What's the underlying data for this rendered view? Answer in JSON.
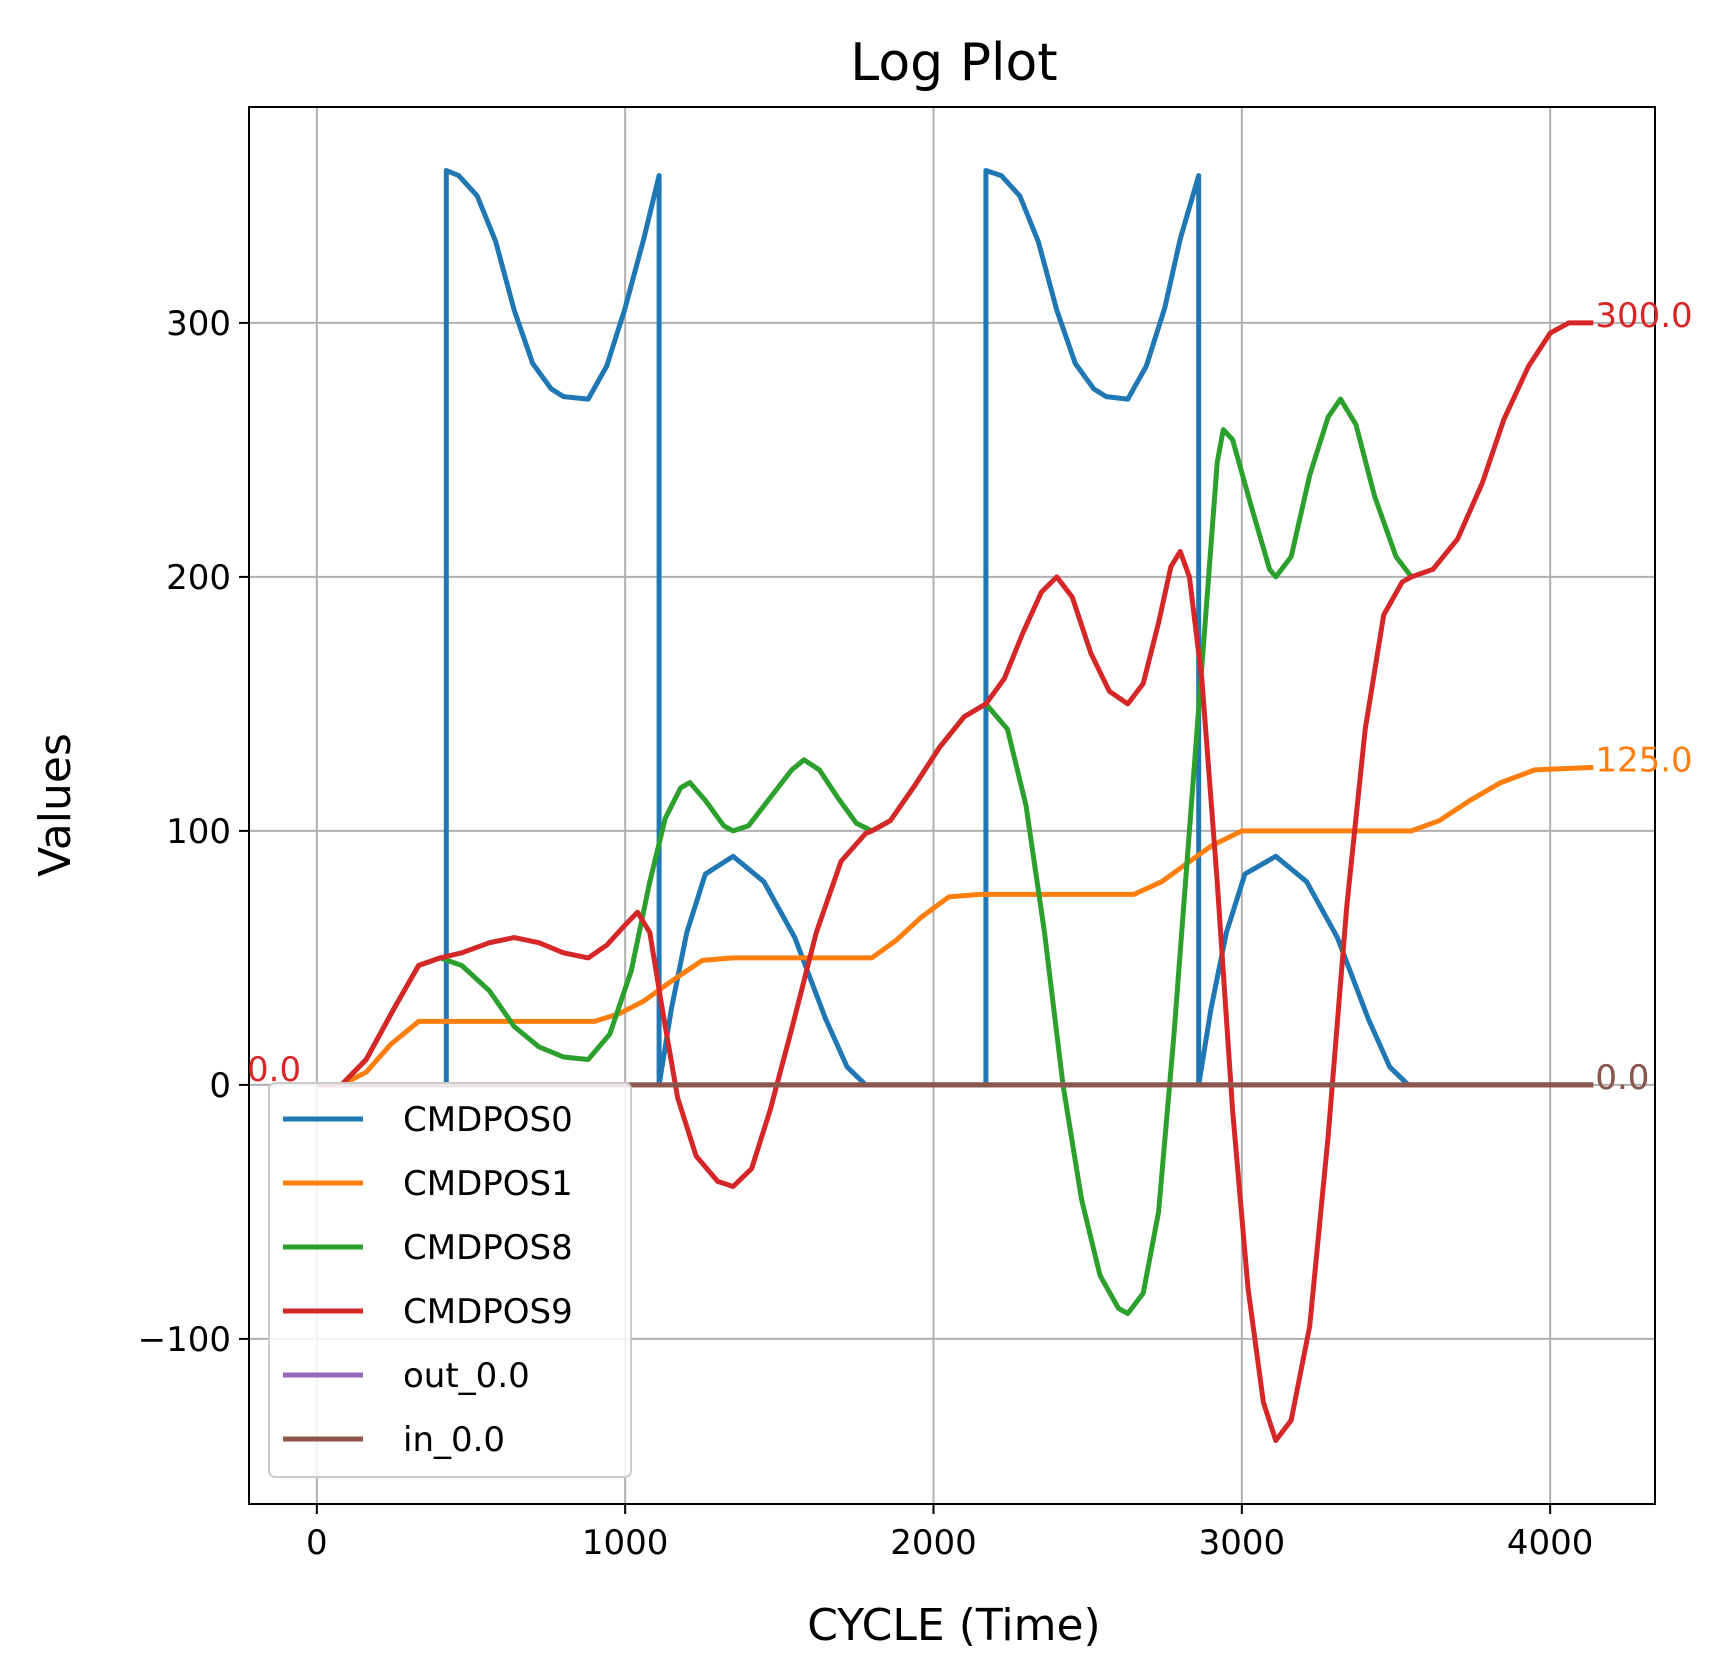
{
  "chart_data": {
    "type": "line",
    "title": "Log Plot",
    "xlabel": "CYCLE (Time)",
    "ylabel": "Values",
    "xlim": [
      -220,
      4340
    ],
    "ylim": [
      -165,
      385
    ],
    "xticks": [
      0,
      1000,
      2000,
      3000,
      4000
    ],
    "yticks": [
      -100,
      0,
      100,
      200,
      300
    ],
    "xtick_labels": [
      "0",
      "1000",
      "2000",
      "3000",
      "4000"
    ],
    "ytick_labels": [
      "−100",
      "0",
      "100",
      "200",
      "300"
    ],
    "grid": true,
    "legend_position": "lower-left",
    "series": [
      {
        "name": "CMDPOS0",
        "color": "#1f77b4",
        "points": [
          [
            0,
            0
          ],
          [
            420,
            0
          ],
          [
            420,
            360
          ],
          [
            460,
            358
          ],
          [
            520,
            350
          ],
          [
            580,
            332
          ],
          [
            640,
            305
          ],
          [
            700,
            284
          ],
          [
            760,
            274
          ],
          [
            800,
            271
          ],
          [
            880,
            270
          ],
          [
            940,
            283
          ],
          [
            1000,
            306
          ],
          [
            1060,
            333
          ],
          [
            1110,
            358
          ],
          [
            1110,
            0
          ],
          [
            1150,
            30
          ],
          [
            1200,
            60
          ],
          [
            1260,
            83
          ],
          [
            1350,
            90
          ],
          [
            1450,
            80
          ],
          [
            1550,
            58
          ],
          [
            1650,
            26
          ],
          [
            1720,
            7
          ],
          [
            1780,
            0
          ],
          [
            2170,
            0
          ],
          [
            2170,
            360
          ],
          [
            2220,
            358
          ],
          [
            2280,
            350
          ],
          [
            2340,
            332
          ],
          [
            2400,
            305
          ],
          [
            2460,
            284
          ],
          [
            2520,
            274
          ],
          [
            2560,
            271
          ],
          [
            2630,
            270
          ],
          [
            2690,
            283
          ],
          [
            2750,
            306
          ],
          [
            2800,
            333
          ],
          [
            2860,
            358
          ],
          [
            2860,
            0
          ],
          [
            2900,
            30
          ],
          [
            2950,
            60
          ],
          [
            3010,
            83
          ],
          [
            3110,
            90
          ],
          [
            3210,
            80
          ],
          [
            3310,
            58
          ],
          [
            3410,
            26
          ],
          [
            3480,
            7
          ],
          [
            3540,
            0
          ],
          [
            4140,
            0
          ]
        ],
        "end_label": "0.0"
      },
      {
        "name": "CMDPOS1",
        "color": "#ff7f0e",
        "points": [
          [
            0,
            0
          ],
          [
            80,
            0
          ],
          [
            160,
            5
          ],
          [
            240,
            16
          ],
          [
            330,
            25
          ],
          [
            900,
            25
          ],
          [
            980,
            28
          ],
          [
            1060,
            33
          ],
          [
            1140,
            40
          ],
          [
            1250,
            49
          ],
          [
            1350,
            50
          ],
          [
            1800,
            50
          ],
          [
            1880,
            57
          ],
          [
            1960,
            66
          ],
          [
            2050,
            74
          ],
          [
            2150,
            75
          ],
          [
            2650,
            75
          ],
          [
            2740,
            80
          ],
          [
            2820,
            87
          ],
          [
            2900,
            94
          ],
          [
            3000,
            100
          ],
          [
            3550,
            100
          ],
          [
            3640,
            104
          ],
          [
            3740,
            112
          ],
          [
            3840,
            119
          ],
          [
            3950,
            124
          ],
          [
            4140,
            125
          ]
        ],
        "end_label": "125.0"
      },
      {
        "name": "CMDPOS8",
        "color": "#2ca02c",
        "points": [
          [
            0,
            0
          ],
          [
            80,
            0
          ],
          [
            160,
            10
          ],
          [
            250,
            30
          ],
          [
            330,
            47
          ],
          [
            400,
            50
          ],
          [
            470,
            47
          ],
          [
            560,
            37
          ],
          [
            640,
            23
          ],
          [
            720,
            15
          ],
          [
            800,
            11
          ],
          [
            880,
            10
          ],
          [
            950,
            20
          ],
          [
            1020,
            45
          ],
          [
            1080,
            80
          ],
          [
            1130,
            105
          ],
          [
            1180,
            117
          ],
          [
            1210,
            119
          ],
          [
            1260,
            112
          ],
          [
            1320,
            102
          ],
          [
            1350,
            100
          ],
          [
            1400,
            102
          ],
          [
            1470,
            113
          ],
          [
            1540,
            124
          ],
          [
            1580,
            128
          ],
          [
            1630,
            124
          ],
          [
            1690,
            113
          ],
          [
            1750,
            103
          ],
          [
            1800,
            100
          ],
          [
            1860,
            104
          ],
          [
            1940,
            118
          ],
          [
            2020,
            133
          ],
          [
            2100,
            145
          ],
          [
            2170,
            150
          ],
          [
            2240,
            140
          ],
          [
            2300,
            110
          ],
          [
            2360,
            60
          ],
          [
            2420,
            0
          ],
          [
            2480,
            -45
          ],
          [
            2540,
            -75
          ],
          [
            2600,
            -88
          ],
          [
            2630,
            -90
          ],
          [
            2680,
            -82
          ],
          [
            2730,
            -50
          ],
          [
            2780,
            20
          ],
          [
            2830,
            100
          ],
          [
            2880,
            180
          ],
          [
            2920,
            245
          ],
          [
            2940,
            258
          ],
          [
            2970,
            254
          ],
          [
            3030,
            228
          ],
          [
            3090,
            203
          ],
          [
            3110,
            200
          ],
          [
            3160,
            208
          ],
          [
            3220,
            240
          ],
          [
            3280,
            263
          ],
          [
            3320,
            270
          ],
          [
            3370,
            260
          ],
          [
            3430,
            232
          ],
          [
            3500,
            208
          ],
          [
            3550,
            200
          ]
        ],
        "end_label": ""
      },
      {
        "name": "CMDPOS9",
        "color": "#d62728",
        "points": [
          [
            0,
            0
          ],
          [
            80,
            0
          ],
          [
            160,
            10
          ],
          [
            250,
            30
          ],
          [
            330,
            47
          ],
          [
            400,
            50
          ],
          [
            470,
            52
          ],
          [
            560,
            56
          ],
          [
            640,
            58
          ],
          [
            720,
            56
          ],
          [
            800,
            52
          ],
          [
            880,
            50
          ],
          [
            940,
            55
          ],
          [
            1000,
            63
          ],
          [
            1040,
            68
          ],
          [
            1080,
            60
          ],
          [
            1120,
            30
          ],
          [
            1170,
            -5
          ],
          [
            1230,
            -28
          ],
          [
            1300,
            -38
          ],
          [
            1350,
            -40
          ],
          [
            1410,
            -33
          ],
          [
            1470,
            -10
          ],
          [
            1540,
            22
          ],
          [
            1620,
            60
          ],
          [
            1700,
            88
          ],
          [
            1780,
            99
          ],
          [
            1800,
            100
          ],
          [
            1860,
            104
          ],
          [
            1940,
            118
          ],
          [
            2020,
            133
          ],
          [
            2100,
            145
          ],
          [
            2170,
            150
          ],
          [
            2230,
            160
          ],
          [
            2290,
            178
          ],
          [
            2350,
            194
          ],
          [
            2400,
            200
          ],
          [
            2450,
            192
          ],
          [
            2510,
            170
          ],
          [
            2570,
            155
          ],
          [
            2630,
            150
          ],
          [
            2680,
            158
          ],
          [
            2730,
            182
          ],
          [
            2770,
            204
          ],
          [
            2800,
            210
          ],
          [
            2830,
            200
          ],
          [
            2870,
            160
          ],
          [
            2920,
            80
          ],
          [
            2970,
            -10
          ],
          [
            3020,
            -80
          ],
          [
            3070,
            -125
          ],
          [
            3110,
            -140
          ],
          [
            3160,
            -132
          ],
          [
            3220,
            -95
          ],
          [
            3280,
            -20
          ],
          [
            3340,
            70
          ],
          [
            3400,
            140
          ],
          [
            3460,
            185
          ],
          [
            3520,
            198
          ],
          [
            3550,
            200
          ],
          [
            3620,
            203
          ],
          [
            3700,
            215
          ],
          [
            3780,
            237
          ],
          [
            3850,
            262
          ],
          [
            3930,
            283
          ],
          [
            4000,
            296
          ],
          [
            4060,
            300
          ],
          [
            4140,
            300
          ]
        ],
        "end_label": "300.0"
      },
      {
        "name": "out_0.0",
        "color": "#9467bd",
        "points": [
          [
            0,
            0
          ],
          [
            4140,
            0
          ]
        ],
        "end_label": ""
      },
      {
        "name": "in_0.0",
        "color": "#8c564b",
        "points": [
          [
            0,
            0
          ],
          [
            4140,
            0
          ]
        ],
        "end_label": "0.0"
      }
    ],
    "start_label": "0.0",
    "start_label_color": "#d62728"
  }
}
